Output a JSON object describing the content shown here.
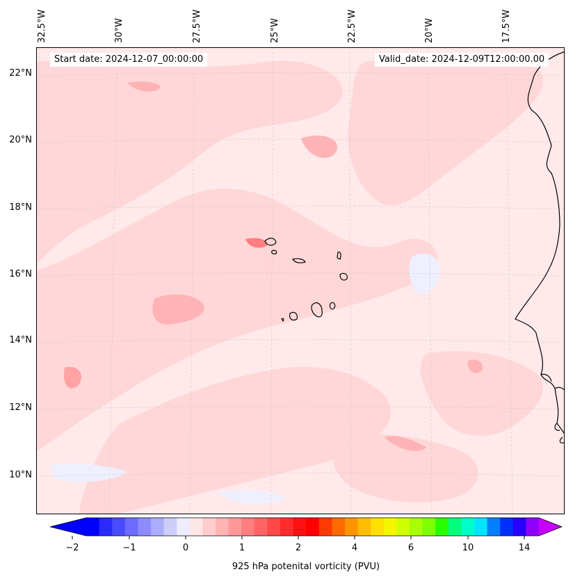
{
  "map": {
    "start_label": "Start date: 2024-12-07_00:00:00",
    "valid_label": "Valid_date: 2024-12-09T12:00:00.00",
    "lon_labels": [
      "32.5°W",
      "30°W",
      "27.5°W",
      "25°W",
      "22.5°W",
      "20°W",
      "17.5°W"
    ],
    "lat_labels": [
      "22°N",
      "20°N",
      "18°N",
      "16°N",
      "14°N",
      "12°N",
      "10°N"
    ],
    "background_color": "#ffe9ea",
    "coastline_color": "#000000",
    "grid_style": "dashed light gray"
  },
  "colorbar": {
    "title": "925 hPa potenital vorticity (PVU)",
    "tick_labels": [
      "−2",
      "−1",
      "0",
      "1",
      "2",
      "4",
      "6",
      "10",
      "14"
    ],
    "colors": [
      "#0000ff",
      "#2a2aff",
      "#4a4aff",
      "#6c6cff",
      "#8c8cff",
      "#adadff",
      "#cecef9",
      "#ededff",
      "#ffe6e6",
      "#ffcccc",
      "#ffb3b3",
      "#ff9999",
      "#ff7d7d",
      "#ff6464",
      "#ff4848",
      "#ff2c2c",
      "#ff1010",
      "#ff0000",
      "#ff3a00",
      "#ff6a00",
      "#ff9400",
      "#ffbd00",
      "#ffe000",
      "#f5f500",
      "#d0ff00",
      "#a8ff00",
      "#7dff00",
      "#28ff00",
      "#00ff7a",
      "#00ffc8",
      "#00e5ff",
      "#0080ff",
      "#0030ff",
      "#2800ff",
      "#9000ff"
    ],
    "extend_low_color": "#0000ff",
    "extend_high_color": "#c800ff"
  }
}
